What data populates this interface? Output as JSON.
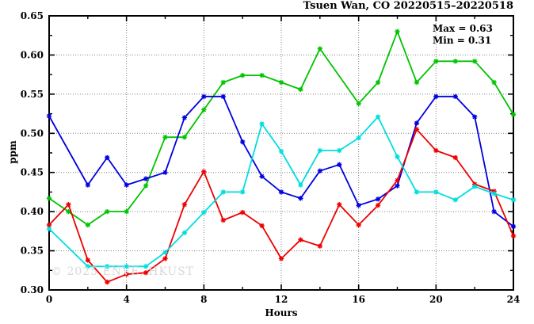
{
  "chart_data": {
    "type": "line",
    "title": "Tsuen Wan, CO 20220515–20220518",
    "xlabel": "Hours",
    "ylabel": "ppm",
    "xlim": [
      0,
      24
    ],
    "ylim": [
      0.3,
      0.65
    ],
    "x_major_ticks": [
      0,
      4,
      8,
      12,
      16,
      20,
      24
    ],
    "x_tick_labels": [
      "0",
      "4",
      "8",
      "12",
      "16",
      "20",
      "24"
    ],
    "x_minor_ticks": [
      2,
      6,
      10,
      14,
      18,
      22
    ],
    "y_major_ticks": [
      0.3,
      0.35,
      0.4,
      0.45,
      0.5,
      0.55,
      0.6,
      0.65
    ],
    "y_tick_labels": [
      "0.30",
      "0.35",
      "0.40",
      "0.45",
      "0.50",
      "0.55",
      "0.60",
      "0.65"
    ],
    "y_minor_ticks": [
      0.325,
      0.375,
      0.425,
      0.475,
      0.525,
      0.575,
      0.625
    ],
    "grid": {
      "on": true,
      "style": "dotted",
      "color": "#808080",
      "x_lines": [
        4,
        8,
        12,
        16,
        20
      ],
      "y_lines": [
        0.35,
        0.4,
        0.45,
        0.5,
        0.55,
        0.6
      ]
    },
    "legend_position": "none",
    "annotations": {
      "max": "Max = 0.63",
      "min": "Min = 0.31"
    },
    "watermark": "© 2025 ENVE, HKUST",
    "x": [
      0,
      1,
      2,
      3,
      4,
      5,
      6,
      7,
      8,
      9,
      10,
      11,
      12,
      13,
      14,
      15,
      16,
      17,
      18,
      19,
      20,
      21,
      22,
      23,
      24
    ],
    "series": [
      {
        "name": "green",
        "color": "#00c400",
        "values": [
          0.417,
          0.4,
          0.383,
          0.4,
          0.4,
          0.433,
          0.495,
          0.495,
          0.53,
          0.565,
          0.574,
          0.574,
          0.565,
          0.556,
          0.608,
          0.573,
          0.538,
          0.565,
          0.63,
          0.565,
          0.592,
          0.592,
          0.592,
          0.565,
          0.524
        ],
        "no_marker_hours": [
          15
        ]
      },
      {
        "name": "blue",
        "color": "#0000e0",
        "values": [
          0.522,
          0.478,
          0.434,
          0.469,
          0.434,
          0.442,
          0.45,
          0.52,
          0.547,
          0.547,
          0.489,
          0.445,
          0.425,
          0.417,
          0.452,
          0.46,
          0.408,
          0.416,
          0.433,
          0.513,
          0.547,
          0.547,
          0.521,
          0.4,
          0.381
        ],
        "no_marker_hours": [
          1
        ]
      },
      {
        "name": "red",
        "color": "#ee0000",
        "values": [
          0.383,
          0.409,
          0.338,
          0.31,
          0.32,
          0.322,
          0.34,
          0.409,
          0.451,
          0.389,
          0.399,
          0.382,
          0.34,
          0.364,
          0.356,
          0.409,
          0.383,
          0.408,
          0.44,
          0.505,
          0.478,
          0.469,
          0.435,
          0.426,
          0.369
        ],
        "no_marker_hours": []
      },
      {
        "name": "cyan",
        "color": "#00dede",
        "values": [
          0.378,
          0.354,
          0.33,
          0.33,
          0.33,
          0.33,
          0.348,
          0.373,
          0.399,
          0.425,
          0.425,
          0.512,
          0.477,
          0.434,
          0.478,
          0.478,
          0.494,
          0.521,
          0.47,
          0.425,
          0.425,
          0.415,
          0.432,
          0.423,
          0.415
        ],
        "no_marker_hours": [
          1
        ]
      }
    ]
  }
}
